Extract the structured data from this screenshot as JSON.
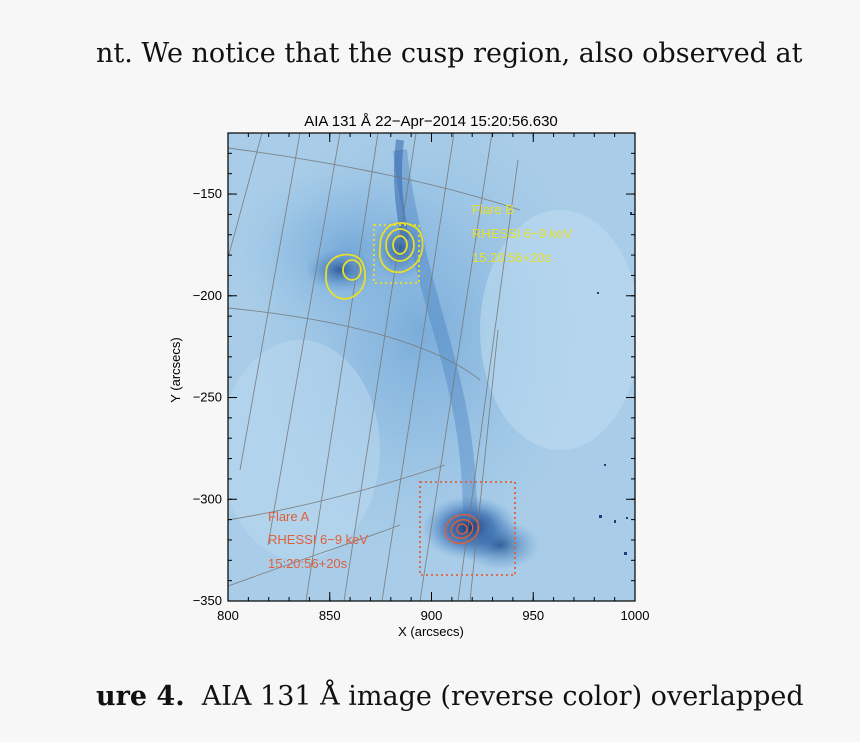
{
  "text": {
    "top_line": "nt. We notice that the cusp region, also observed at",
    "caption_label": "ure 4.",
    "caption_text": "AIA 131 Å image (reverse color) overlapped"
  },
  "figure": {
    "title": "AIA 131 Å 22−Apr−2014 15:20:56.630",
    "xlabel": "X (arcsecs)",
    "ylabel": "Y (arcsecs)",
    "xlim": [
      800,
      1000
    ],
    "ylim": [
      -350,
      -120
    ],
    "x_ticks": [
      "800",
      "850",
      "900",
      "950",
      "1000"
    ],
    "y_ticks": [
      "−150",
      "−200",
      "−250",
      "−300",
      "−350"
    ],
    "annotations": {
      "flare_b": [
        "Flare B",
        "RHESSI 6−9 keV",
        "15:20:56+20s"
      ],
      "flare_a": [
        "Flare A",
        "RHESSI 6−9 keV",
        "15:20:56+20s"
      ]
    },
    "colors": {
      "flare_b": "#e8df2a",
      "flare_a": "#e0603a",
      "background": "#a9cde8",
      "dark_emission": "#2a5ea8"
    }
  }
}
